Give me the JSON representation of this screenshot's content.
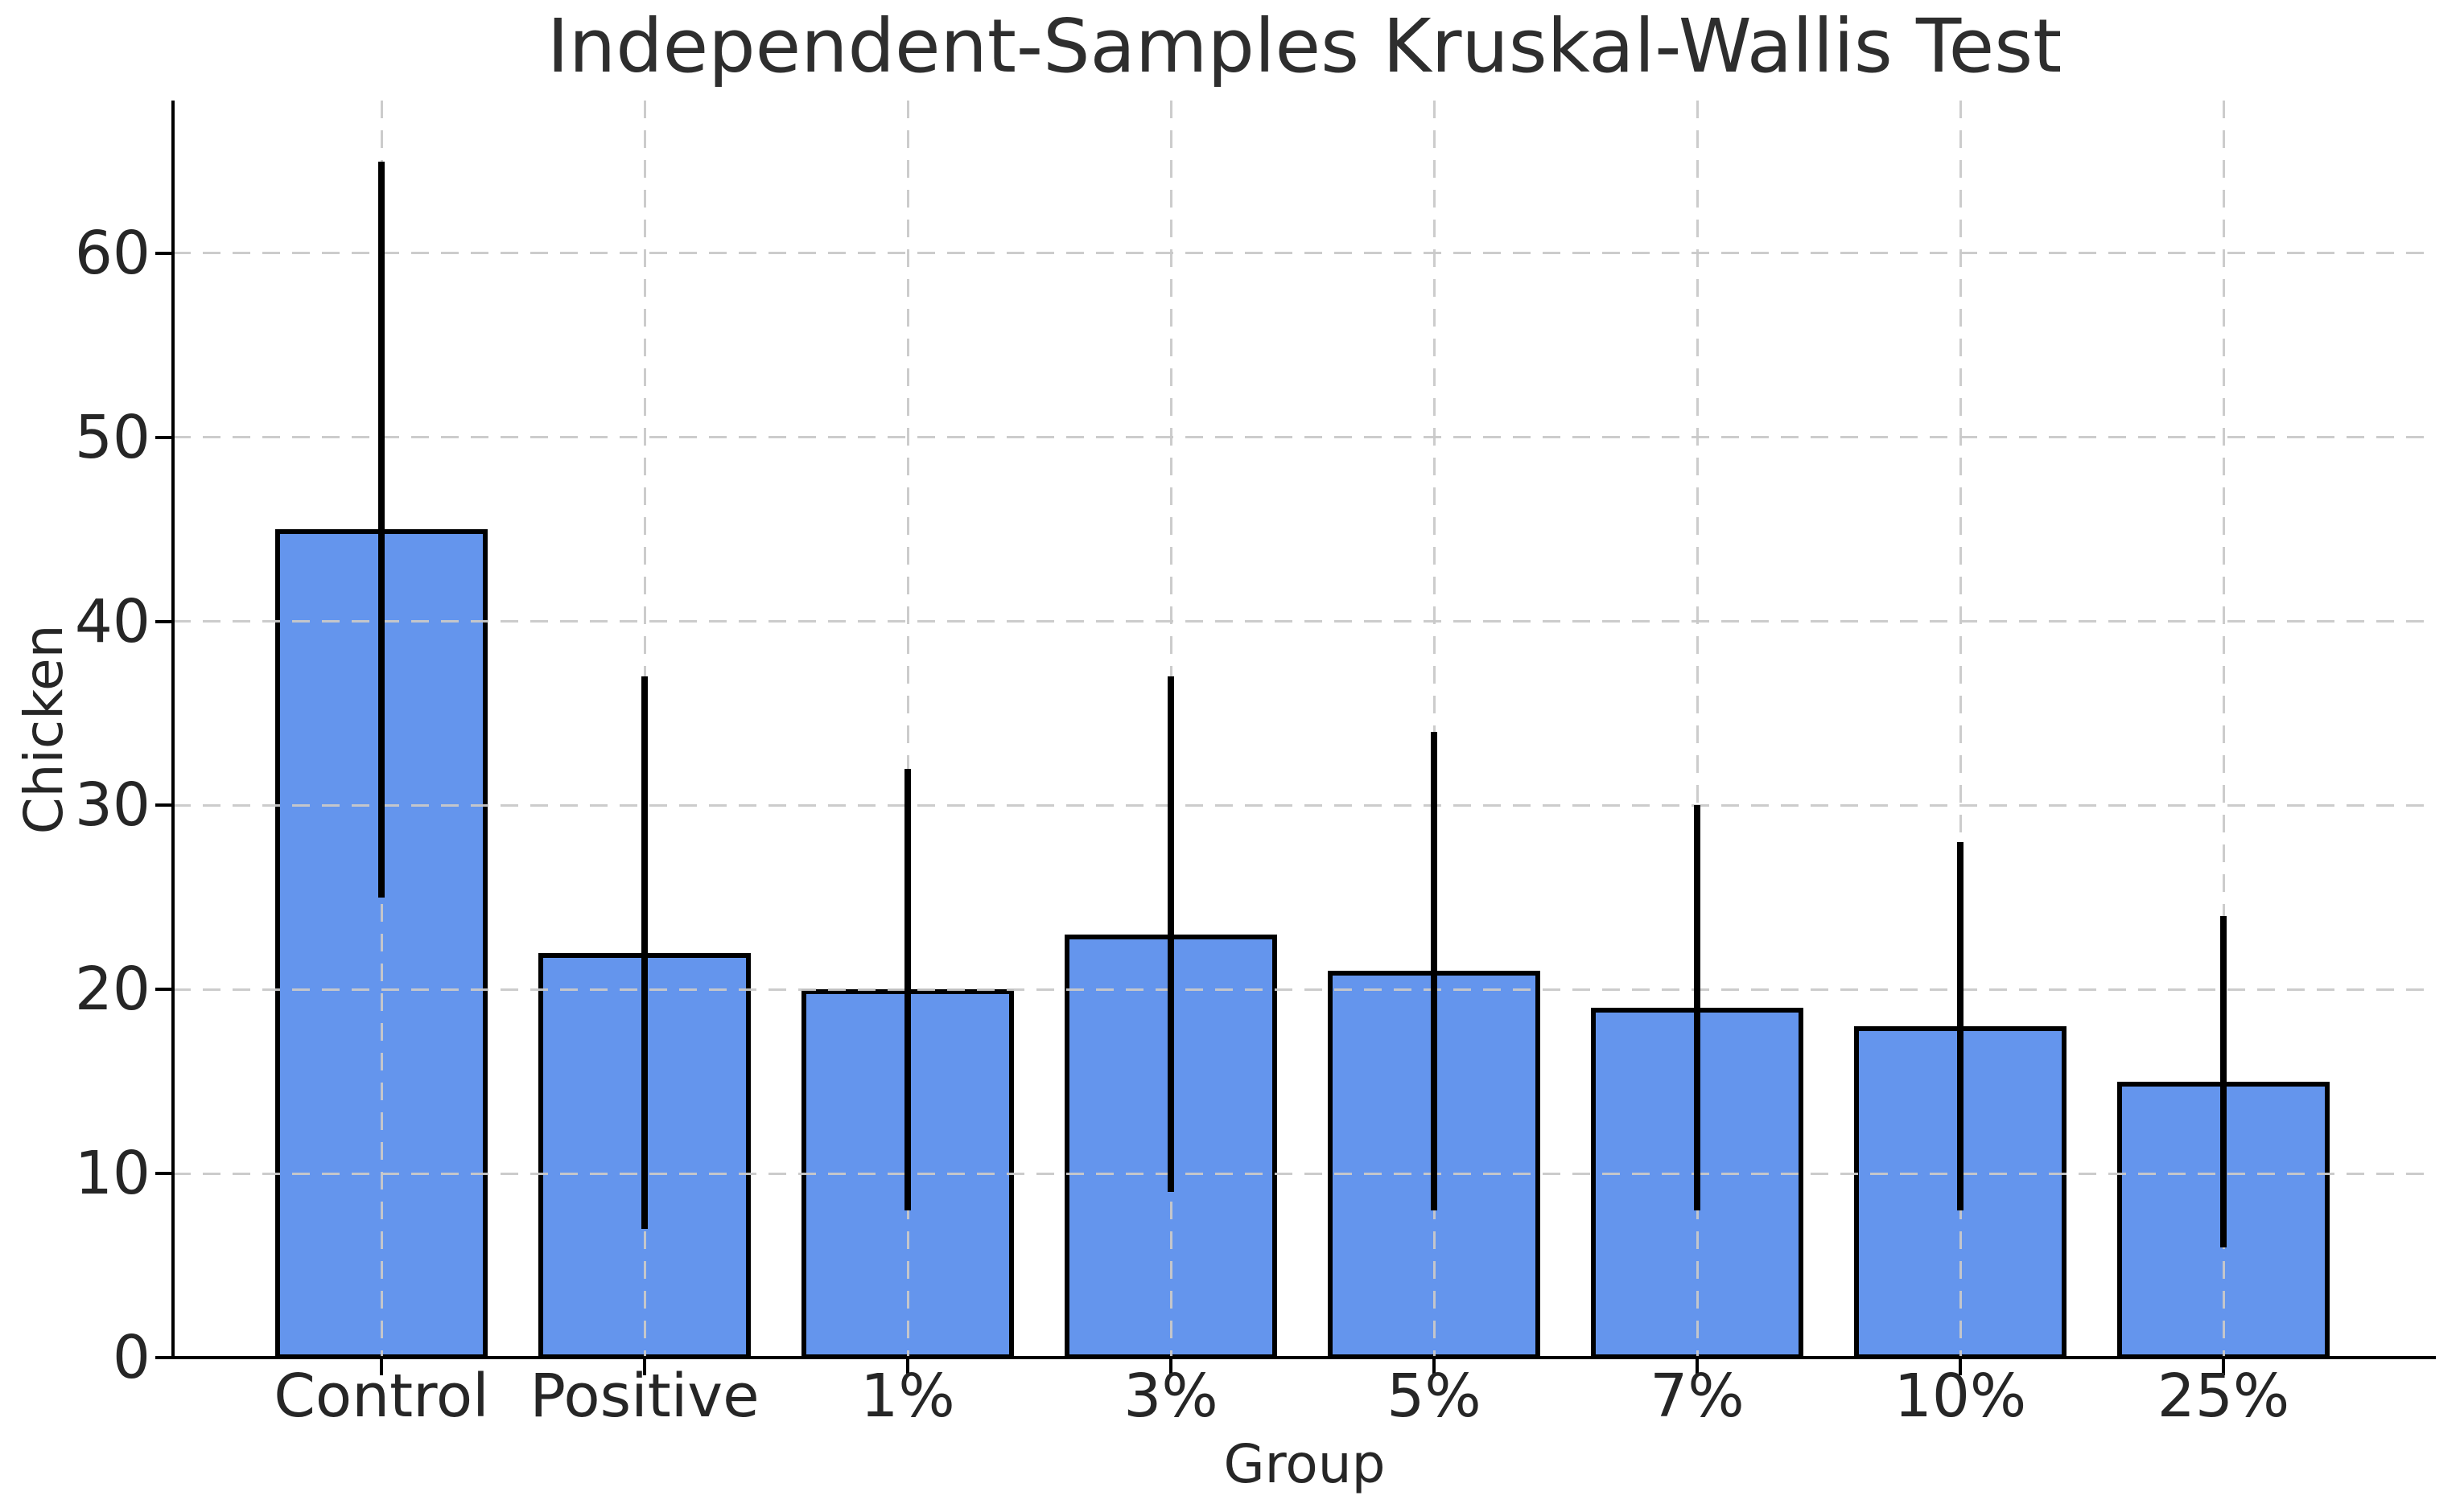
{
  "chart_data": {
    "type": "bar",
    "title": "Independent-Samples Kruskal-Wallis Test",
    "xlabel": "Group",
    "ylabel": "Chicken",
    "categories": [
      "Control",
      "Positive",
      "1%",
      "3%",
      "5%",
      "7%",
      "10%",
      "25%"
    ],
    "values": [
      45,
      22,
      20,
      23,
      21,
      19,
      18,
      15
    ],
    "error_low": [
      25,
      7,
      8,
      9,
      8,
      8,
      8,
      6
    ],
    "error_high": [
      65,
      37,
      32,
      37,
      34,
      30,
      28,
      24
    ],
    "yticks": [
      0,
      10,
      20,
      30,
      40,
      50,
      60
    ],
    "ylim": [
      0,
      68.3
    ],
    "legend": "none",
    "grid": "dashed both-axes drawn above bars",
    "colors": {
      "bar_fill": "#6495ED",
      "bar_edge": "#000000",
      "error_bar": "#000000",
      "gridline": "#c9c9c9",
      "spine": "#000000",
      "text": "#262626",
      "title_text": "#2e2e2e",
      "background": "#ffffff"
    }
  }
}
